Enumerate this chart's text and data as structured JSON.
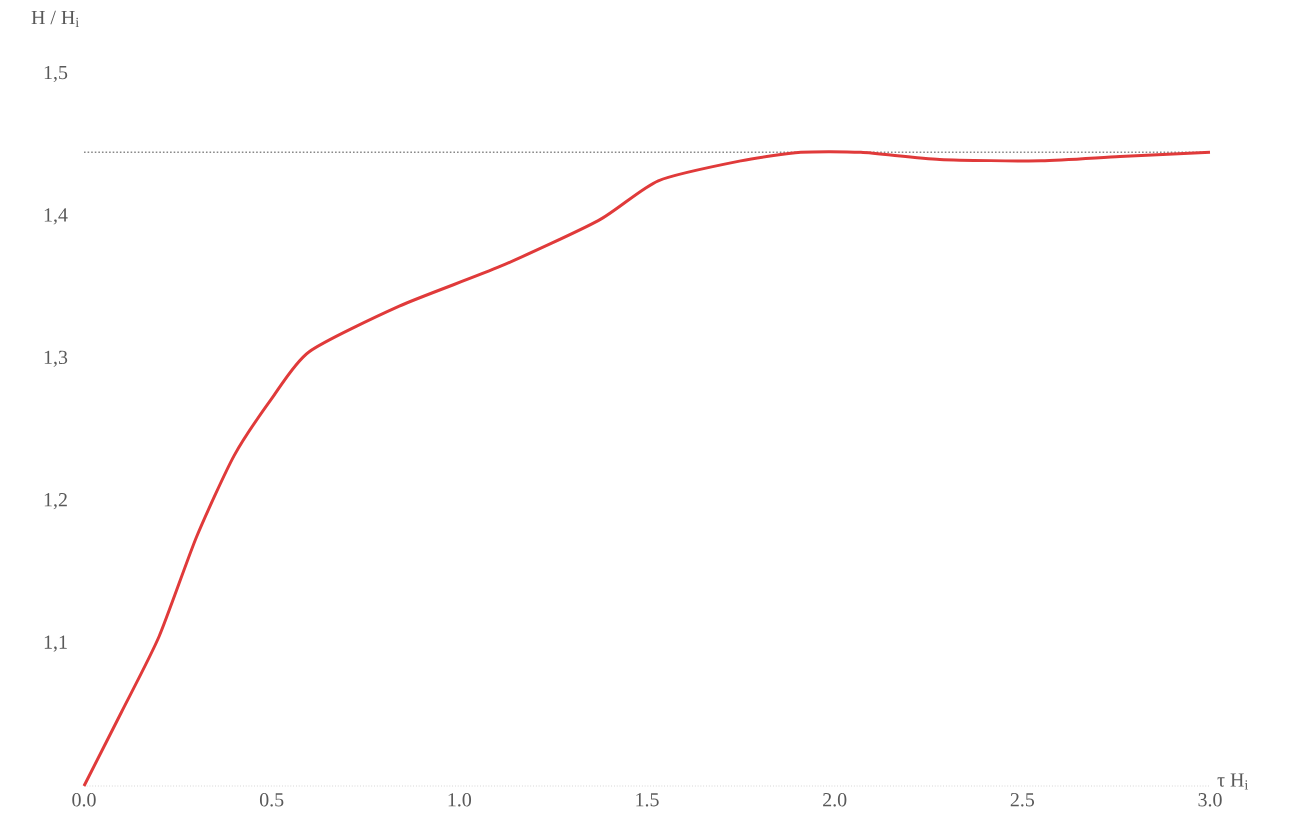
{
  "chart_data": {
    "type": "line",
    "xlabel": "τ H$_{i}$",
    "ylabel": "H / H$_{i}$",
    "x": [
      0,
      0.1,
      0.2,
      0.3,
      0.4,
      0.5,
      0.6,
      0.84,
      1.11,
      1.37,
      1.53,
      1.75,
      1.91,
      2.07,
      2.28,
      2.55,
      2.76,
      3.0
    ],
    "series": [
      {
        "color": "#e03a3a",
        "values": [
          1.0,
          1.052,
          1.105,
          1.175,
          1.232,
          1.272,
          1.305,
          1.337,
          1.365,
          1.397,
          1.425,
          1.439,
          1.445,
          1.445,
          1.44,
          1.439,
          1.442,
          1.445
        ]
      }
    ],
    "xlim": [
      0,
      3.0
    ],
    "ylim": [
      1.0,
      1.5
    ],
    "xticks": [
      {
        "value": 0,
        "label": "0.0"
      },
      {
        "value": 0.5,
        "label": "0.5"
      },
      {
        "value": 1,
        "label": "1.0"
      },
      {
        "value": 1.5,
        "label": "1.5"
      },
      {
        "value": 2,
        "label": "2.0"
      },
      {
        "value": 2.5,
        "label": "2.5"
      },
      {
        "value": 3,
        "label": "3.0"
      }
    ],
    "yticks": [
      {
        "value": 1.1,
        "label": "1,1"
      },
      {
        "value": 1.2,
        "label": "1,2"
      },
      {
        "value": 1.3,
        "label": "1,3"
      },
      {
        "value": 1.4,
        "label": "1,4"
      },
      {
        "value": 1.5,
        "label": "1,5"
      }
    ],
    "ref_lines": [
      {
        "axis": "y",
        "value": 1.445,
        "color": "#888888",
        "line_style": "dotted"
      }
    ],
    "grid": false,
    "marker": "none",
    "line_style": "solid"
  }
}
